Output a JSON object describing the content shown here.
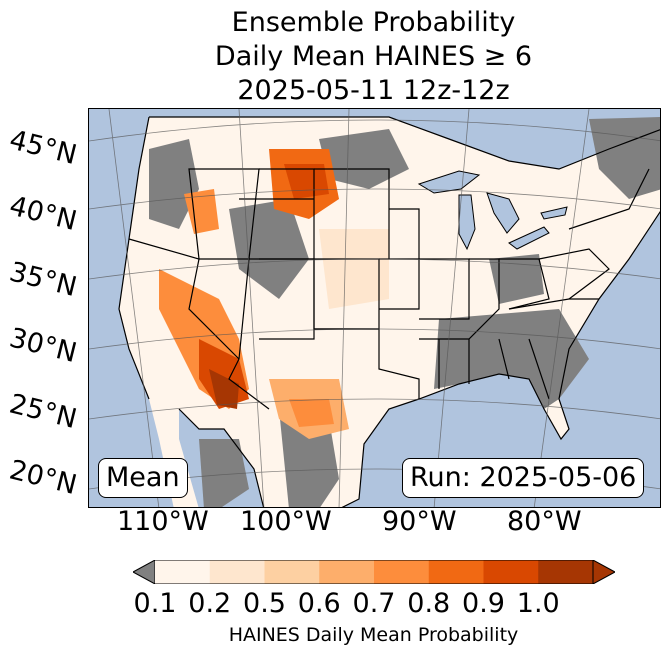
{
  "title": {
    "line1": "Ensemble Probability",
    "line2": "Daily Mean HAINES ≥ 6",
    "line3": "2025-05-11 12z-12z"
  },
  "map": {
    "lat_labels": [
      "45°N",
      "40°N",
      "35°N",
      "30°N",
      "25°N",
      "20°N"
    ],
    "lon_labels": [
      "110°W",
      "100°W",
      "90°W",
      "80°W"
    ],
    "stat_label": "Mean",
    "run_label": "Run: 2025-05-06",
    "colors": {
      "ocean": "#b0c4de",
      "missing": "#808080",
      "p01": "#fff5eb",
      "p02": "#fee6ce",
      "p05": "#fdd0a2",
      "p06": "#fdae6b",
      "p07": "#fd8d3c",
      "p08": "#f16913",
      "p09": "#d94801",
      "p10": "#a63603"
    }
  },
  "colorbar": {
    "ticks": [
      "0.1",
      "0.2",
      "0.5",
      "0.6",
      "0.7",
      "0.8",
      "0.9",
      "1.0"
    ],
    "colors": [
      "#fff5eb",
      "#fee6ce",
      "#fdd0a2",
      "#fdae6b",
      "#fd8d3c",
      "#f16913",
      "#d94801",
      "#a63603"
    ],
    "under_color": "#808080",
    "label": "HAINES Daily Mean Probability"
  }
}
